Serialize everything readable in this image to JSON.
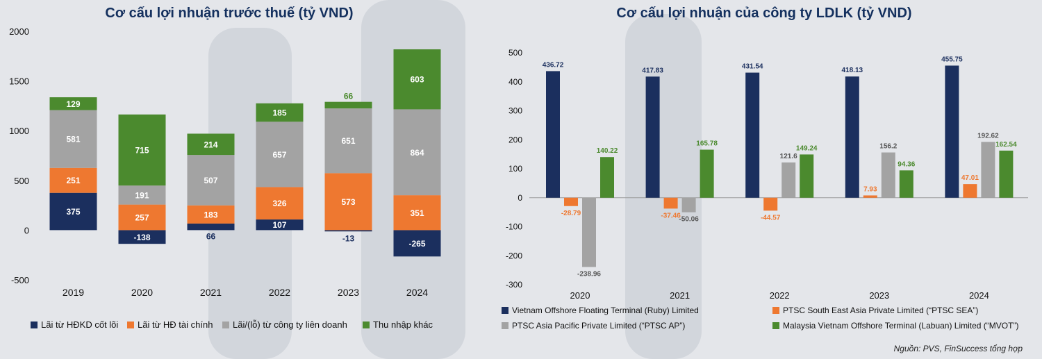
{
  "colors": {
    "navy": "#1b2f5e",
    "orange": "#ee7830",
    "gray": "#a3a3a3",
    "green": "#4b8a2e"
  },
  "left": {
    "title": "Cơ cấu lợi nhuận trước thuế (tỷ VND)",
    "legend": [
      {
        "label": "Lãi từ HĐKD cốt lõi",
        "color": "#1b2f5e"
      },
      {
        "label": "Lãi từ HĐ tài chính",
        "color": "#ee7830"
      },
      {
        "label": "Lãi/(lỗ) từ công ty liên doanh",
        "color": "#a3a3a3"
      },
      {
        "label": "Thu nhập khác",
        "color": "#4b8a2e"
      }
    ]
  },
  "right": {
    "title": "Cơ cấu lợi nhuận của công ty LDLK (tỷ VND)",
    "legend": [
      {
        "label": "Vietnam Offshore Floating Terminal (Ruby) Limited",
        "color": "#1b2f5e"
      },
      {
        "label": "PTSC South East Asia Private Limited (“PTSC SEA”)",
        "color": "#ee7830"
      },
      {
        "label": "PTSC Asia Pacific Private Limited (“PTSC AP”)",
        "color": "#a3a3a3"
      },
      {
        "label": "Malaysia Vietnam Offshore Terminal (Labuan) Limited (“MVOT”)",
        "color": "#4b8a2e"
      }
    ]
  },
  "source": "Nguồn: PVS, FinSuccess tổng hợp",
  "chart_data": [
    {
      "type": "bar",
      "stacked": true,
      "title": "Cơ cấu lợi nhuận trước thuế (tỷ VND)",
      "categories": [
        "2019",
        "2020",
        "2021",
        "2022",
        "2023",
        "2024"
      ],
      "ylim": [
        -500,
        2000
      ],
      "yticks": [
        -500,
        0,
        500,
        1000,
        1500,
        2000
      ],
      "series": [
        {
          "name": "Lãi từ HĐKD cốt lõi",
          "color": "#1b2f5e",
          "values": [
            375,
            -138,
            66,
            107,
            -13,
            -265
          ]
        },
        {
          "name": "Lãi từ HĐ tài chính",
          "color": "#ee7830",
          "values": [
            251,
            257,
            183,
            326,
            573,
            351
          ]
        },
        {
          "name": "Lãi/(lỗ) từ công ty liên doanh",
          "color": "#a3a3a3",
          "values": [
            581,
            191,
            507,
            657,
            651,
            864
          ]
        },
        {
          "name": "Thu nhập khác",
          "color": "#4b8a2e",
          "values": [
            129,
            715,
            214,
            185,
            66,
            603
          ]
        }
      ]
    },
    {
      "type": "bar",
      "stacked": false,
      "title": "Cơ cấu lợi nhuận của công ty LDLK (tỷ VND)",
      "categories": [
        "2020",
        "2021",
        "2022",
        "2023",
        "2024"
      ],
      "ylim": [
        -300,
        500
      ],
      "yticks": [
        -300,
        -200,
        -100,
        0,
        100,
        200,
        300,
        400,
        500
      ],
      "series": [
        {
          "name": "Vietnam Offshore Floating Terminal (Ruby) Limited",
          "color": "#1b2f5e",
          "values": [
            436.72,
            417.83,
            431.54,
            418.13,
            455.75
          ]
        },
        {
          "name": "PTSC South East Asia Private Limited (“PTSC SEA”)",
          "color": "#ee7830",
          "values": [
            -28.79,
            -37.46,
            -44.57,
            7.93,
            47.01
          ]
        },
        {
          "name": "PTSC Asia Pacific Private Limited (“PTSC AP”)",
          "color": "#a3a3a3",
          "values": [
            -238.96,
            -50.06,
            121.6,
            156.2,
            192.62
          ]
        },
        {
          "name": "Malaysia Vietnam Offshore Terminal (Labuan) Limited (“MVOT”)",
          "color": "#4b8a2e",
          "values": [
            140.22,
            165.78,
            149.24,
            94.36,
            162.54
          ]
        }
      ]
    }
  ]
}
